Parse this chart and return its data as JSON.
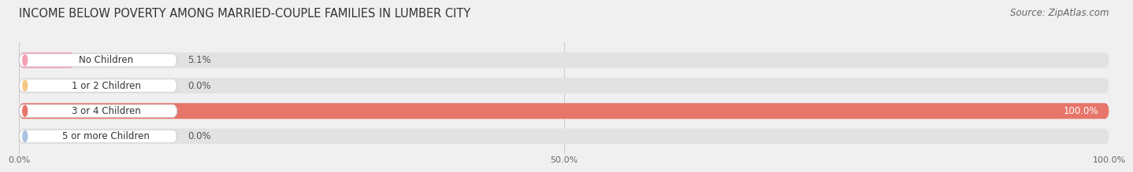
{
  "title": "INCOME BELOW POVERTY AMONG MARRIED-COUPLE FAMILIES IN LUMBER CITY",
  "source": "Source: ZipAtlas.com",
  "categories": [
    "No Children",
    "1 or 2 Children",
    "3 or 4 Children",
    "5 or more Children"
  ],
  "values": [
    5.1,
    0.0,
    100.0,
    0.0
  ],
  "bar_colors": [
    "#f5a0b5",
    "#f5c98a",
    "#e8756a",
    "#a8c4e0"
  ],
  "xlim": [
    0,
    100
  ],
  "xticks": [
    0,
    50,
    100
  ],
  "xticklabels": [
    "0.0%",
    "50.0%",
    "100.0%"
  ],
  "background_color": "#f0f0f0",
  "bar_background_color": "#e2e2e2",
  "title_fontsize": 10.5,
  "source_fontsize": 8.5,
  "label_fontsize": 8.5,
  "value_fontsize": 8.5,
  "bar_height": 0.62,
  "fig_width": 14.06,
  "fig_height": 2.33
}
